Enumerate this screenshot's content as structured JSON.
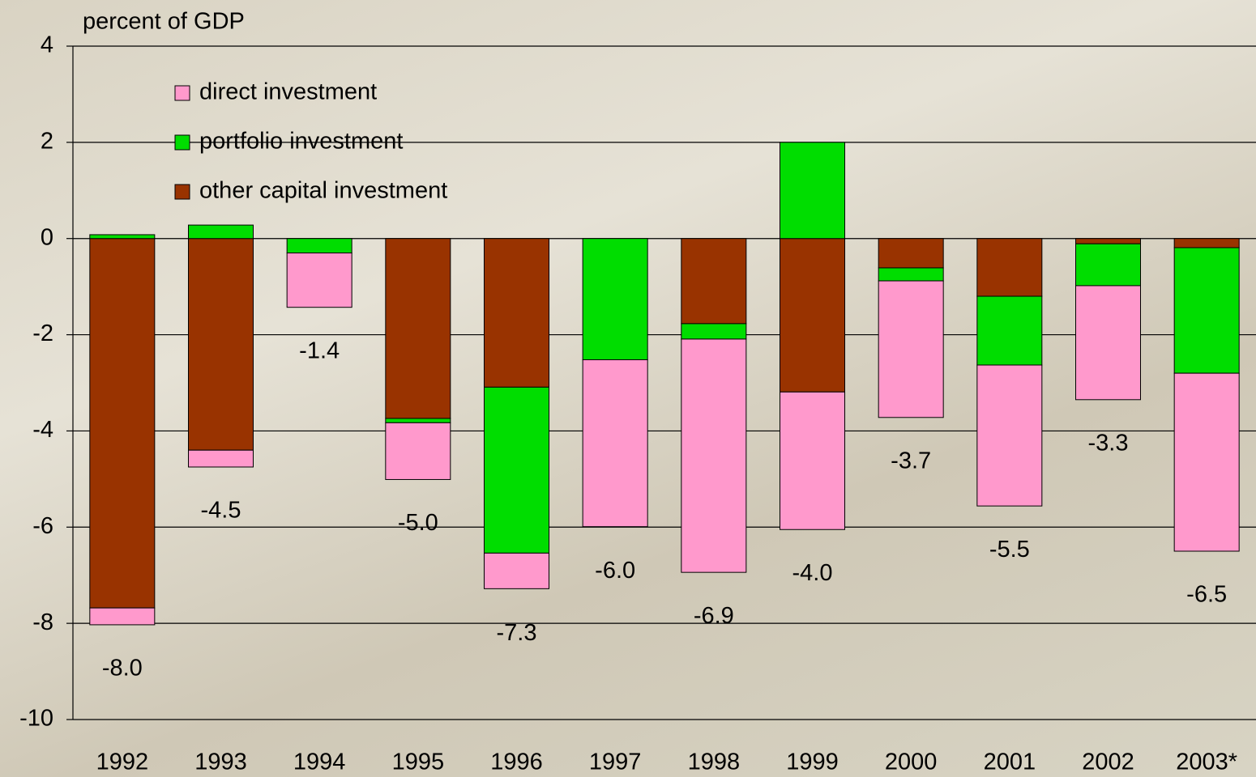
{
  "chart_data": {
    "type": "stacked_bar",
    "y_axis_label": "percent of GDP",
    "categories": [
      "1992",
      "1993",
      "1994",
      "1995",
      "1996",
      "1997",
      "1998",
      "1999",
      "2000",
      "2001",
      "2002",
      "2003*"
    ],
    "series": [
      {
        "name": "direct investment",
        "color": "#ff99cc",
        "values": [
          -0.35,
          -0.35,
          -1.13,
          -1.18,
          -0.74,
          -3.47,
          -4.85,
          -2.86,
          -2.84,
          -2.93,
          -2.37,
          -3.7
        ]
      },
      {
        "name": "portfolio investment",
        "color": "#00dd00",
        "values": [
          0.08,
          0.28,
          -0.3,
          -0.09,
          -3.45,
          -2.52,
          -0.32,
          2.0,
          -0.27,
          -1.43,
          -0.87,
          -2.61
        ]
      },
      {
        "name": "other capital investment",
        "color": "#993300",
        "values": [
          -7.68,
          -4.4,
          0,
          -3.74,
          -3.09,
          0,
          -1.77,
          -3.19,
          -0.61,
          -1.2,
          -0.11,
          -0.19
        ]
      }
    ],
    "totals": {
      "values": [
        -8.0,
        -4.5,
        -1.4,
        -5.0,
        -7.3,
        -6.0,
        -6.9,
        -4.0,
        -3.7,
        -5.5,
        -3.3,
        -6.5
      ],
      "value_labels": [
        "-8.0",
        "-4.5",
        "-1.4",
        "-5.0",
        "-7.3",
        "-6.0",
        "-6.9",
        "-4.0",
        "-3.7",
        "-5.5",
        "-3.3",
        "-6.5"
      ]
    },
    "ylim": [
      -10,
      4
    ],
    "yticks": [
      -10,
      -8,
      -6,
      -4,
      -2,
      0,
      2,
      4
    ],
    "grid": true
  }
}
